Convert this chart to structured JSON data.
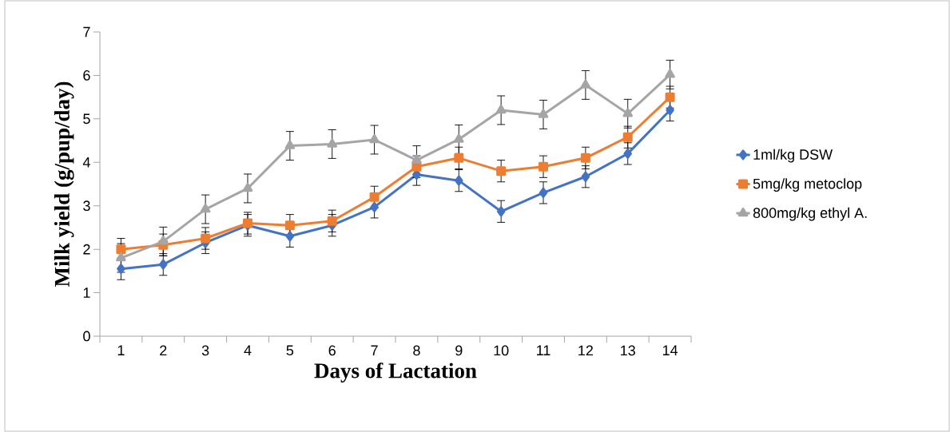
{
  "chart_data": {
    "type": "line",
    "xlabel": "Days of Lactation",
    "ylabel": "Milk yield (g/pup/day)",
    "categories": [
      "1",
      "2",
      "3",
      "4",
      "5",
      "6",
      "7",
      "8",
      "9",
      "10",
      "11",
      "12",
      "13",
      "14"
    ],
    "ylim": [
      0,
      7
    ],
    "yticks": [
      0,
      1,
      2,
      3,
      4,
      5,
      6,
      7
    ],
    "grid": false,
    "legend": "right",
    "series": [
      {
        "name": "1ml/kg DSW",
        "color": "#4472c4",
        "marker": "diamond",
        "values": [
          1.55,
          1.65,
          2.15,
          2.55,
          2.3,
          2.55,
          2.97,
          3.72,
          3.58,
          2.87,
          3.3,
          3.67,
          4.2,
          5.2
        ],
        "errors": [
          0.25,
          0.25,
          0.25,
          0.25,
          0.25,
          0.25,
          0.25,
          0.25,
          0.25,
          0.25,
          0.25,
          0.25,
          0.25,
          0.25
        ]
      },
      {
        "name": "5mg/kg metoclop",
        "color": "#ed7d31",
        "marker": "square",
        "values": [
          2.0,
          2.1,
          2.25,
          2.6,
          2.55,
          2.65,
          3.2,
          3.9,
          4.1,
          3.8,
          3.9,
          4.1,
          4.58,
          5.5
        ],
        "errors": [
          0.25,
          0.25,
          0.25,
          0.25,
          0.25,
          0.25,
          0.25,
          0.25,
          0.25,
          0.25,
          0.25,
          0.25,
          0.25,
          0.25
        ]
      },
      {
        "name": "800mg/kg ethyl A.",
        "color": "#a5a5a5",
        "marker": "triangle",
        "values": [
          1.8,
          2.18,
          2.92,
          3.4,
          4.38,
          4.42,
          4.52,
          4.05,
          4.53,
          5.2,
          5.1,
          5.78,
          5.12,
          6.02
        ],
        "errors": [
          0.33,
          0.33,
          0.33,
          0.33,
          0.33,
          0.33,
          0.33,
          0.33,
          0.33,
          0.33,
          0.33,
          0.33,
          0.33,
          0.33
        ]
      }
    ]
  }
}
